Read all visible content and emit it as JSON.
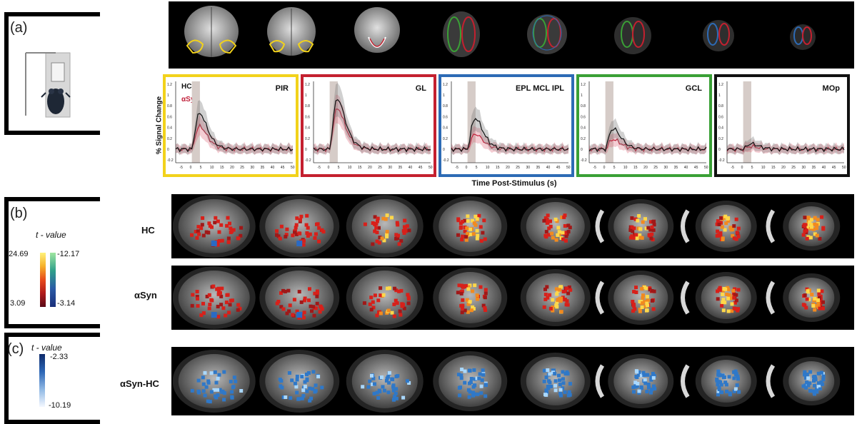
{
  "panel_a": {
    "label": "(a)",
    "traces": {
      "y_axis_label": "% Signal Change",
      "x_axis_label": "Time Post-Stimulus (s)",
      "legend": [
        {
          "name": "HC",
          "color": "#111111"
        },
        {
          "name": "αSyn",
          "color": "#c0203a"
        }
      ],
      "y_ticks": [
        "1.2",
        "1",
        "0.8",
        "0.6",
        "0.4",
        "0.2",
        "0",
        "-0.2"
      ],
      "x_ticks": [
        "-5",
        "0",
        "5",
        "10",
        "15",
        "20",
        "25",
        "30",
        "35",
        "40",
        "45",
        "50"
      ],
      "plots": [
        {
          "region": "PIR",
          "frame_color": "#f2d21b",
          "peak_hc": 0.66,
          "peak_as": 0.42
        },
        {
          "region": "GL",
          "frame_color": "#c4202f",
          "peak_hc": 0.93,
          "peak_as": 0.75
        },
        {
          "region": "EPL MCL IPL",
          "frame_color": "#2d6bb5",
          "peak_hc": 0.57,
          "peak_as": 0.28
        },
        {
          "region": "GCL",
          "frame_color": "#3aa036",
          "peak_hc": 0.38,
          "peak_as": 0.18
        },
        {
          "region": "MOp",
          "frame_color": "#111111",
          "peak_hc": 0.1,
          "peak_as": 0.05
        }
      ]
    }
  },
  "panel_b": {
    "label": "(b)",
    "colorbar_title": "t - value",
    "pos_max": "24.69",
    "pos_min": "3.09",
    "neg_max": "-12.17",
    "neg_min": "-3.14",
    "rows": [
      "HC",
      "αSyn"
    ]
  },
  "panel_c": {
    "label": "(c)",
    "colorbar_title": "t - value",
    "top_value": "-2.33",
    "bottom_value": "-10.19",
    "rows": [
      "αSyn-HC"
    ]
  },
  "chart_data": {
    "type": "line",
    "title": "",
    "xlabel": "Time Post-Stimulus (s)",
    "ylabel": "% Signal Change",
    "xlim": [
      -8,
      50
    ],
    "ylim": [
      -0.25,
      1.25
    ],
    "stimulus_window": [
      0,
      4
    ],
    "panels": [
      {
        "region": "PIR",
        "series": [
          {
            "name": "HC",
            "peak": 0.66
          },
          {
            "name": "αSyn",
            "peak": 0.42
          }
        ]
      },
      {
        "region": "GL",
        "series": [
          {
            "name": "HC",
            "peak": 0.93
          },
          {
            "name": "αSyn",
            "peak": 0.75
          }
        ]
      },
      {
        "region": "EPL MCL IPL",
        "series": [
          {
            "name": "HC",
            "peak": 0.57
          },
          {
            "name": "αSyn",
            "peak": 0.28
          }
        ]
      },
      {
        "region": "GCL",
        "series": [
          {
            "name": "HC",
            "peak": 0.38
          },
          {
            "name": "αSyn",
            "peak": 0.18
          }
        ]
      },
      {
        "region": "MOp",
        "series": [
          {
            "name": "HC",
            "peak": 0.1
          },
          {
            "name": "αSyn",
            "peak": 0.05
          }
        ]
      }
    ]
  }
}
